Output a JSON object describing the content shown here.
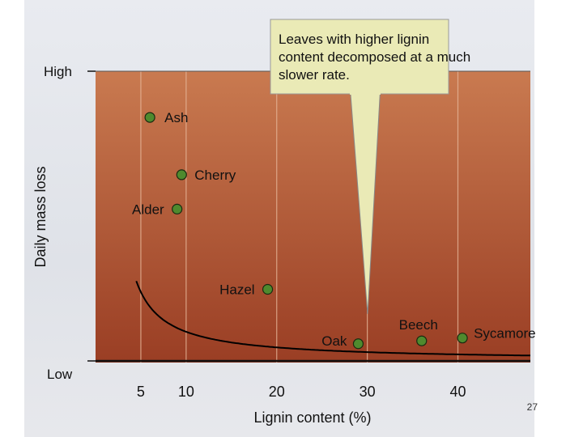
{
  "chart_data": {
    "type": "scatter",
    "title": "",
    "xlabel": "Lignin content (%)",
    "ylabel": "Daily mass loss",
    "xlim": [
      0,
      48
    ],
    "x_ticks": [
      5,
      10,
      20,
      30,
      40
    ],
    "y_tick_labels": {
      "high": "High",
      "low": "Low"
    },
    "grid": true,
    "points": [
      {
        "label": "Ash",
        "x": 6.0,
        "y": 0.85
      },
      {
        "label": "Cherry",
        "x": 9.5,
        "y": 0.65
      },
      {
        "label": "Alder",
        "x": 9.0,
        "y": 0.53
      },
      {
        "label": "Hazel",
        "x": 19.0,
        "y": 0.25
      },
      {
        "label": "Oak",
        "x": 29.0,
        "y": 0.06
      },
      {
        "label": "Beech",
        "x": 36.0,
        "y": 0.07
      },
      {
        "label": "Sycamore",
        "x": 40.5,
        "y": 0.08
      }
    ],
    "annotation": "Leaves with higher lignin content decomposed at a much slower rate.",
    "colors": {
      "plot_top": "#c97a50",
      "plot_bottom": "#9a3e24",
      "point": "#4f8a2e",
      "callout": "#eaeab6"
    }
  },
  "page_number": "27"
}
